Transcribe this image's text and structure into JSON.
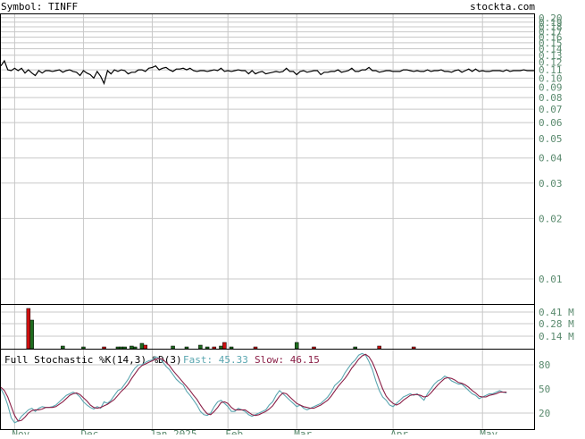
{
  "header": {
    "symbol_label": "Symbol: TINFF",
    "site": "stockta.com"
  },
  "colors": {
    "grid": "#c8c8c8",
    "axis_text": "#5a8a6e",
    "price_line": "#000000",
    "vol_up": "#1e6b1e",
    "vol_down": "#cc1111",
    "fast_line": "#5aa6b0",
    "slow_line": "#8a1e46",
    "frame": "#000000"
  },
  "stoch_legend": {
    "title": "Full Stochastic %K(14,3) %D(3)",
    "fast_label": "Fast: 45.33",
    "slow_label": "Slow: 46.15"
  },
  "chart_data": [
    {
      "type": "line",
      "panel": "price",
      "scale": "log",
      "ylim": [
        0.0075,
        0.21
      ],
      "y_ticks": [
        {
          "value": 0.2,
          "label": "0.20"
        },
        {
          "value": 0.19,
          "label": "0.19"
        },
        {
          "value": 0.18,
          "label": "0.18"
        },
        {
          "value": 0.17,
          "label": "0.17"
        },
        {
          "value": 0.16,
          "label": "0.16"
        },
        {
          "value": 0.15,
          "label": "0.15"
        },
        {
          "value": 0.14,
          "label": "0.14"
        },
        {
          "value": 0.13,
          "label": "0.13"
        },
        {
          "value": 0.12,
          "label": "0.12"
        },
        {
          "value": 0.11,
          "label": "0.11"
        },
        {
          "value": 0.1,
          "label": "0.10"
        },
        {
          "value": 0.09,
          "label": "0.09"
        },
        {
          "value": 0.08,
          "label": "0.08"
        },
        {
          "value": 0.07,
          "label": "0.07"
        },
        {
          "value": 0.06,
          "label": "0.06"
        },
        {
          "value": 0.05,
          "label": "0.05"
        },
        {
          "value": 0.04,
          "label": "0.04"
        },
        {
          "value": 0.03,
          "label": "0.03"
        },
        {
          "value": 0.02,
          "label": "0.02"
        },
        {
          "value": 0.01,
          "label": "0.01"
        }
      ],
      "x_ticks": [
        {
          "i": 4,
          "label": "Nov"
        },
        {
          "i": 24,
          "label": "Dec"
        },
        {
          "i": 44,
          "label": "Jan 2025"
        },
        {
          "i": 66,
          "label": "Feb"
        },
        {
          "i": 86,
          "label": "Mar"
        },
        {
          "i": 114,
          "label": "Apr"
        },
        {
          "i": 140,
          "label": "May"
        }
      ],
      "values": [
        0.115,
        0.122,
        0.11,
        0.109,
        0.112,
        0.109,
        0.112,
        0.106,
        0.11,
        0.106,
        0.103,
        0.109,
        0.106,
        0.109,
        0.109,
        0.108,
        0.109,
        0.11,
        0.107,
        0.109,
        0.11,
        0.108,
        0.107,
        0.103,
        0.109,
        0.106,
        0.104,
        0.1,
        0.108,
        0.102,
        0.094,
        0.109,
        0.105,
        0.11,
        0.108,
        0.11,
        0.109,
        0.105,
        0.107,
        0.107,
        0.11,
        0.11,
        0.108,
        0.112,
        0.113,
        0.115,
        0.11,
        0.112,
        0.113,
        0.11,
        0.108,
        0.111,
        0.111,
        0.112,
        0.11,
        0.112,
        0.109,
        0.108,
        0.109,
        0.109,
        0.108,
        0.109,
        0.11,
        0.109,
        0.112,
        0.108,
        0.109,
        0.108,
        0.109,
        0.11,
        0.109,
        0.109,
        0.105,
        0.109,
        0.105,
        0.107,
        0.108,
        0.105,
        0.106,
        0.107,
        0.108,
        0.107,
        0.108,
        0.112,
        0.108,
        0.108,
        0.104,
        0.108,
        0.109,
        0.107,
        0.108,
        0.109,
        0.109,
        0.104,
        0.107,
        0.107,
        0.108,
        0.108,
        0.11,
        0.107,
        0.108,
        0.109,
        0.112,
        0.108,
        0.108,
        0.11,
        0.11,
        0.113,
        0.109,
        0.109,
        0.107,
        0.108,
        0.109,
        0.109,
        0.108,
        0.108,
        0.108,
        0.11,
        0.11,
        0.109,
        0.108,
        0.109,
        0.108,
        0.108,
        0.11,
        0.108,
        0.109,
        0.109,
        0.11,
        0.108,
        0.108,
        0.107,
        0.109,
        0.11,
        0.107,
        0.109,
        0.111,
        0.108,
        0.111,
        0.108,
        0.109,
        0.108,
        0.108,
        0.109,
        0.109,
        0.109,
        0.108,
        0.11,
        0.108,
        0.109,
        0.109,
        0.109,
        0.11,
        0.109,
        0.109,
        0.109
      ]
    },
    {
      "type": "bar",
      "panel": "volume",
      "ylim": [
        0,
        0.5
      ],
      "y_ticks": [
        {
          "value": 0.41,
          "label": "0.41 M"
        },
        {
          "value": 0.28,
          "label": "0.28 M"
        },
        {
          "value": 0.14,
          "label": "0.14 M"
        }
      ],
      "bars": [
        {
          "i": 8,
          "v": 0.45,
          "dir": "down"
        },
        {
          "i": 9,
          "v": 0.32,
          "dir": "up"
        },
        {
          "i": 18,
          "v": 0.03,
          "dir": "up"
        },
        {
          "i": 24,
          "v": 0.02,
          "dir": "up"
        },
        {
          "i": 30,
          "v": 0.02,
          "dir": "down"
        },
        {
          "i": 34,
          "v": 0.02,
          "dir": "up"
        },
        {
          "i": 35,
          "v": 0.02,
          "dir": "up"
        },
        {
          "i": 36,
          "v": 0.02,
          "dir": "up"
        },
        {
          "i": 38,
          "v": 0.03,
          "dir": "up"
        },
        {
          "i": 39,
          "v": 0.02,
          "dir": "up"
        },
        {
          "i": 41,
          "v": 0.06,
          "dir": "up"
        },
        {
          "i": 42,
          "v": 0.04,
          "dir": "down"
        },
        {
          "i": 50,
          "v": 0.03,
          "dir": "up"
        },
        {
          "i": 54,
          "v": 0.02,
          "dir": "up"
        },
        {
          "i": 58,
          "v": 0.04,
          "dir": "up"
        },
        {
          "i": 60,
          "v": 0.02,
          "dir": "up"
        },
        {
          "i": 62,
          "v": 0.02,
          "dir": "down"
        },
        {
          "i": 64,
          "v": 0.03,
          "dir": "up"
        },
        {
          "i": 65,
          "v": 0.07,
          "dir": "down"
        },
        {
          "i": 67,
          "v": 0.02,
          "dir": "up"
        },
        {
          "i": 74,
          "v": 0.02,
          "dir": "down"
        },
        {
          "i": 86,
          "v": 0.07,
          "dir": "up"
        },
        {
          "i": 91,
          "v": 0.02,
          "dir": "down"
        },
        {
          "i": 103,
          "v": 0.02,
          "dir": "up"
        },
        {
          "i": 110,
          "v": 0.03,
          "dir": "down"
        },
        {
          "i": 120,
          "v": 0.02,
          "dir": "down"
        }
      ]
    },
    {
      "type": "line",
      "panel": "stochastic",
      "ylim": [
        0,
        100
      ],
      "y_ticks": [
        {
          "value": 80,
          "label": "80"
        },
        {
          "value": 50,
          "label": "50"
        },
        {
          "value": 20,
          "label": "20"
        }
      ],
      "series": [
        {
          "name": "Fast",
          "values": [
            50,
            42,
            30,
            14,
            8,
            10,
            16,
            20,
            24,
            26,
            22,
            26,
            28,
            27,
            27,
            28,
            30,
            34,
            38,
            42,
            44,
            46,
            44,
            40,
            34,
            30,
            27,
            25,
            28,
            26,
            34,
            32,
            36,
            42,
            48,
            50,
            56,
            62,
            70,
            76,
            80,
            80,
            83,
            85,
            86,
            90,
            88,
            84,
            78,
            74,
            68,
            62,
            58,
            55,
            47,
            42,
            36,
            30,
            22,
            18,
            17,
            20,
            28,
            34,
            36,
            32,
            28,
            22,
            22,
            26,
            24,
            22,
            18,
            16,
            18,
            20,
            22,
            24,
            30,
            34,
            42,
            48,
            44,
            40,
            36,
            32,
            28,
            30,
            26,
            24,
            26,
            28,
            30,
            32,
            36,
            40,
            46,
            54,
            58,
            62,
            70,
            76,
            82,
            86,
            92,
            94,
            92,
            84,
            74,
            60,
            48,
            40,
            36,
            30,
            28,
            32,
            36,
            40,
            42,
            44,
            42,
            44,
            40,
            36,
            44,
            50,
            56,
            60,
            62,
            66,
            64,
            60,
            58,
            56,
            56,
            52,
            48,
            44,
            42,
            38,
            40,
            42,
            44,
            44,
            46,
            48,
            46,
            45
          ]
        },
        {
          "name": "Slow",
          "values": [
            52,
            48,
            40,
            28,
            17,
            10,
            11,
            15,
            20,
            23,
            24,
            24,
            25,
            27,
            27,
            27,
            28,
            31,
            34,
            38,
            42,
            44,
            45,
            43,
            39,
            35,
            30,
            27,
            26,
            27,
            29,
            31,
            34,
            37,
            42,
            47,
            51,
            56,
            63,
            69,
            75,
            79,
            81,
            83,
            85,
            87,
            88,
            87,
            83,
            79,
            73,
            68,
            63,
            58,
            53,
            48,
            42,
            37,
            30,
            24,
            19,
            18,
            22,
            27,
            33,
            34,
            32,
            27,
            24,
            24,
            24,
            24,
            21,
            18,
            17,
            18,
            20,
            22,
            25,
            29,
            35,
            41,
            45,
            44,
            40,
            36,
            32,
            30,
            28,
            27,
            26,
            26,
            28,
            30,
            33,
            36,
            41,
            47,
            53,
            58,
            63,
            69,
            76,
            81,
            87,
            91,
            93,
            90,
            83,
            73,
            61,
            50,
            41,
            36,
            32,
            30,
            32,
            36,
            39,
            42,
            43,
            43,
            42,
            40,
            41,
            45,
            50,
            55,
            59,
            63,
            64,
            63,
            61,
            58,
            57,
            55,
            52,
            48,
            45,
            41,
            40,
            40,
            42,
            43,
            44,
            46,
            46,
            46
          ]
        }
      ]
    }
  ]
}
